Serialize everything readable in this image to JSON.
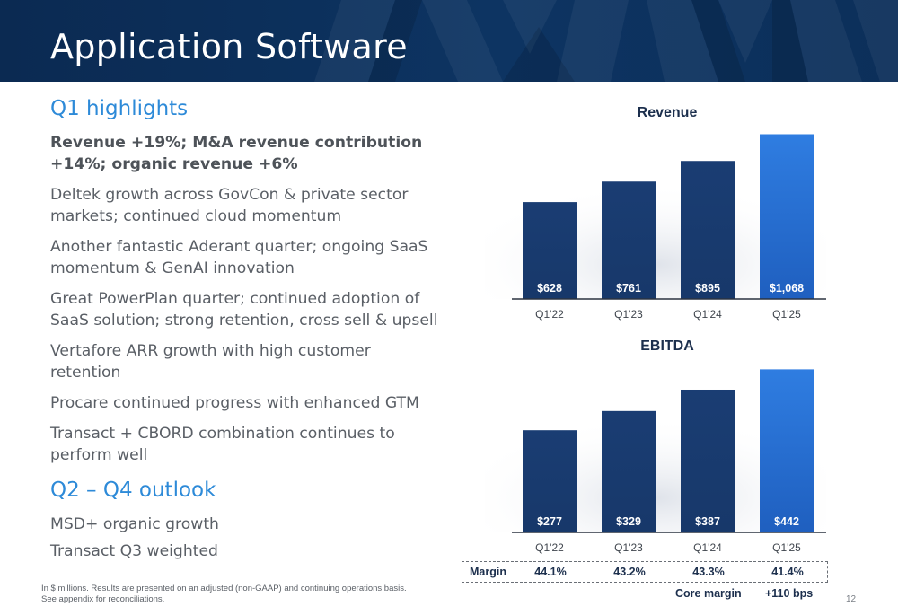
{
  "header": {
    "title": "Application Software"
  },
  "q1": {
    "heading": "Q1 highlights",
    "bullets": [
      "Revenue +19%; M&A revenue contribution +14%; organic revenue +6%",
      "Deltek growth across GovCon & private sector markets; continued cloud momentum",
      "Another fantastic Aderant quarter; ongoing SaaS momentum & GenAI innovation",
      "Great PowerPlan quarter; continued adoption of SaaS solution; strong retention, cross sell & upsell",
      "Vertafore ARR growth with high customer retention",
      "Procare continued progress with enhanced GTM",
      "Transact + CBORD combination continues to perform well"
    ]
  },
  "outlook": {
    "heading": "Q2 – Q4 outlook",
    "bullets": [
      "MSD+ organic growth",
      "Transact Q3 weighted"
    ]
  },
  "footnote": {
    "line1": "In $ millions. Results are presented on an adjusted (non-GAAP) and continuing operations basis.",
    "line2": "See appendix for reconciliations."
  },
  "page_number": "12",
  "margin_row": {
    "label": "Margin",
    "values": [
      "44.1%",
      "43.2%",
      "43.3%",
      "41.4%"
    ],
    "core_label": "Core margin",
    "core_value": "+110 bps"
  },
  "colors": {
    "bar_dark": "#17386a",
    "bar_highlight": "#2f7de1",
    "heading_blue": "#2d8ad8",
    "header_navy": "#0b2a52"
  },
  "chart_data": [
    {
      "type": "bar",
      "title": "Revenue",
      "categories": [
        "Q1'22",
        "Q1'23",
        "Q1'24",
        "Q1'25"
      ],
      "values": [
        628,
        761,
        895,
        1068
      ],
      "data_labels": [
        "$628",
        "$761",
        "$895",
        "$1,068"
      ],
      "ylim": [
        0,
        1100
      ],
      "grid": false,
      "highlight_index": 3
    },
    {
      "type": "bar",
      "title": "EBITDA",
      "categories": [
        "Q1'22",
        "Q1'23",
        "Q1'24",
        "Q1'25"
      ],
      "values": [
        277,
        329,
        387,
        442
      ],
      "data_labels": [
        "$277",
        "$329",
        "$387",
        "$442"
      ],
      "ylim": [
        0,
        460
      ],
      "grid": false,
      "highlight_index": 3
    }
  ]
}
